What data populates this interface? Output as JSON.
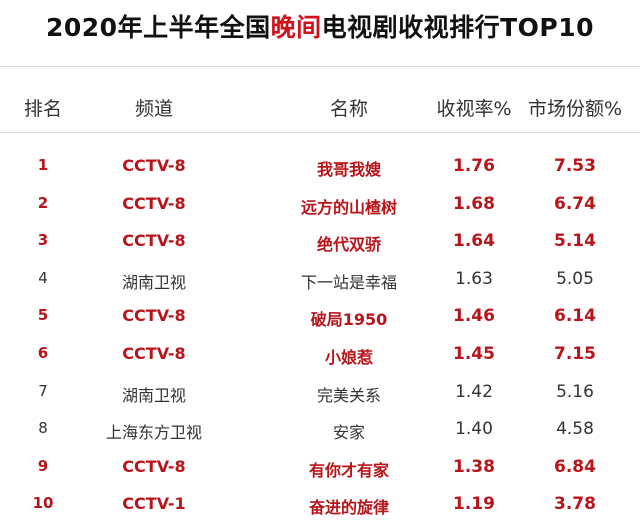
{
  "title": {
    "prefix": "2020年上半年全国",
    "highlight": "晚间",
    "suffix": "电视剧收视排行TOP10"
  },
  "colors": {
    "accent": "#d0101a",
    "highlight_row": "#b8151b",
    "normal_row": "#333333"
  },
  "columns": [
    "排名",
    "频道",
    "名称",
    "收视率%",
    "市场份额%"
  ],
  "rows": [
    {
      "rank": "1",
      "channel": "CCTV-8",
      "name": "我哥我嫂",
      "rating": "1.76",
      "share": "7.53",
      "highlight": true
    },
    {
      "rank": "2",
      "channel": "CCTV-8",
      "name": "远方的山楂树",
      "rating": "1.68",
      "share": "6.74",
      "highlight": true
    },
    {
      "rank": "3",
      "channel": "CCTV-8",
      "name": "绝代双骄",
      "rating": "1.64",
      "share": "5.14",
      "highlight": true
    },
    {
      "rank": "4",
      "channel": "湖南卫视",
      "name": "下一站是幸福",
      "rating": "1.63",
      "share": "5.05",
      "highlight": false
    },
    {
      "rank": "5",
      "channel": "CCTV-8",
      "name": "破局1950",
      "rating": "1.46",
      "share": "6.14",
      "highlight": true
    },
    {
      "rank": "6",
      "channel": "CCTV-8",
      "name": "小娘惹",
      "rating": "1.45",
      "share": "7.15",
      "highlight": true
    },
    {
      "rank": "7",
      "channel": "湖南卫视",
      "name": "完美关系",
      "rating": "1.42",
      "share": "5.16",
      "highlight": false
    },
    {
      "rank": "8",
      "channel": "上海东方卫视",
      "name": "安家",
      "rating": "1.40",
      "share": "4.58",
      "highlight": false
    },
    {
      "rank": "9",
      "channel": "CCTV-8",
      "name": "有你才有家",
      "rating": "1.38",
      "share": "6.84",
      "highlight": true
    },
    {
      "rank": "10",
      "channel": "CCTV-1",
      "name": "奋进的旋律",
      "rating": "1.19",
      "share": "3.78",
      "highlight": true
    }
  ]
}
